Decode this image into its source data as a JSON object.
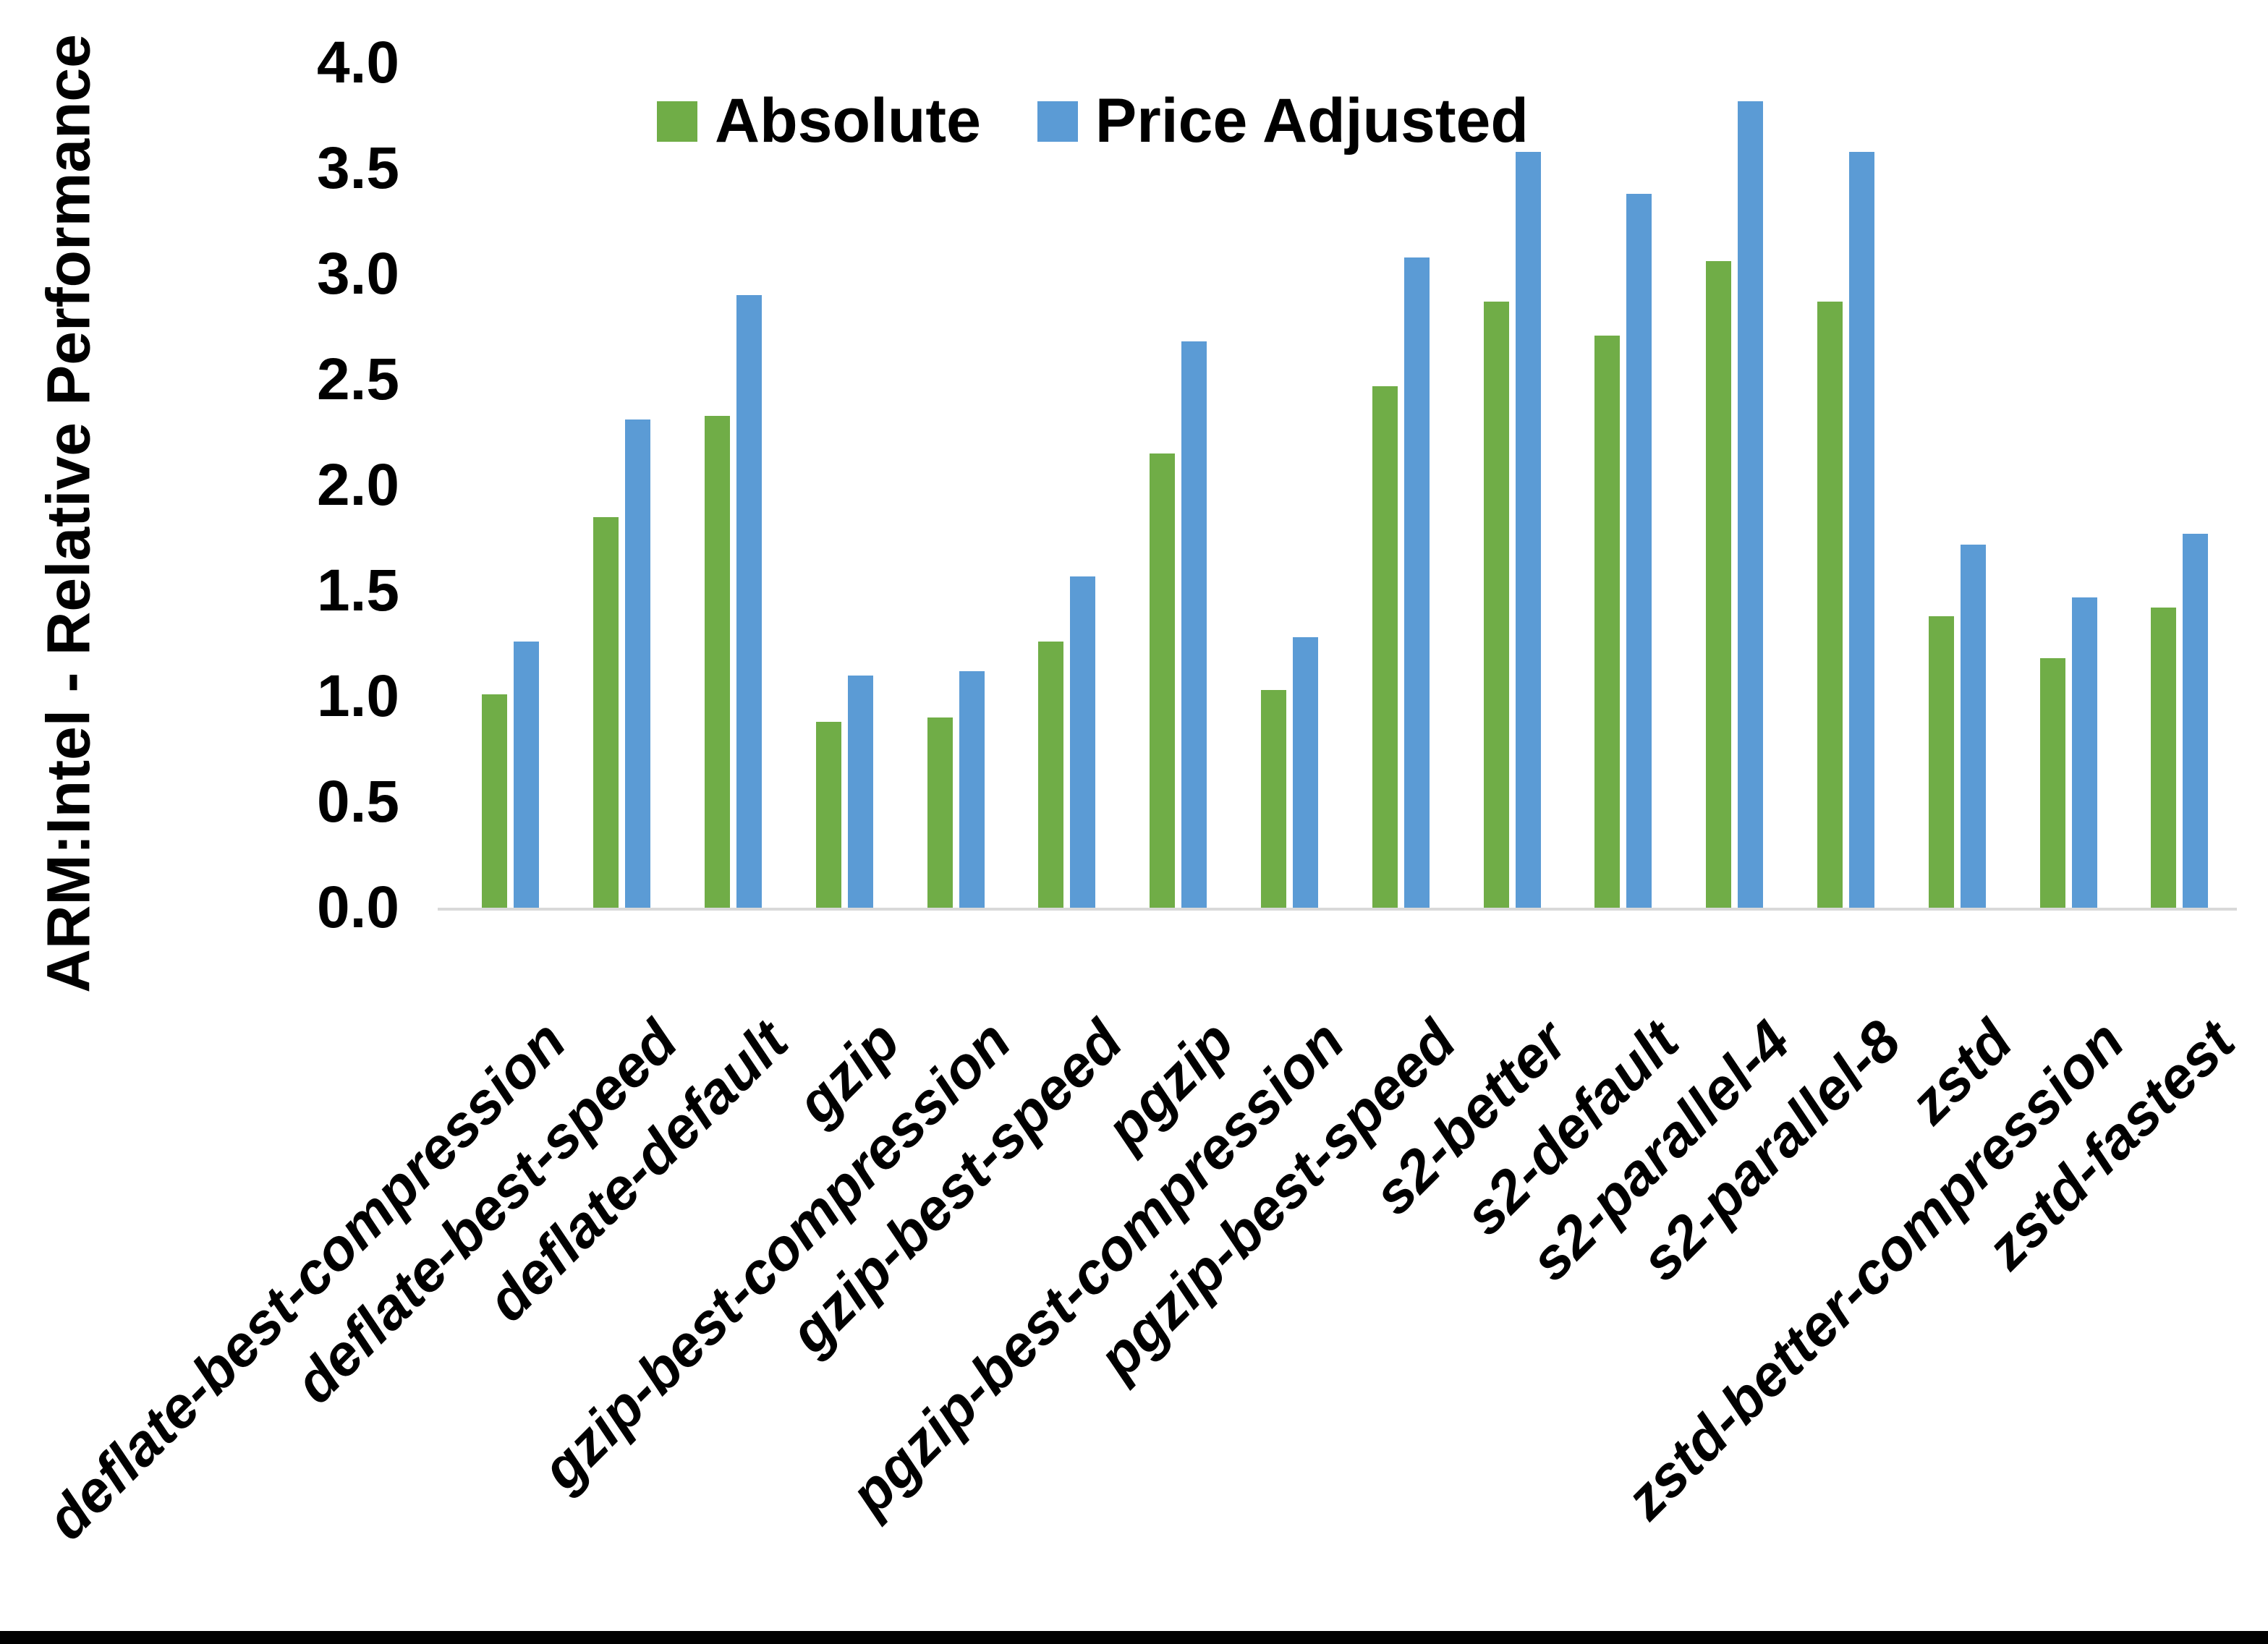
{
  "chart_data": {
    "type": "bar",
    "title": "",
    "xlabel": "",
    "ylabel": "ARM:Intel - Relative Performance",
    "ylim": [
      0.0,
      4.0
    ],
    "ytick_interval": 0.5,
    "ytick_labels": [
      "0.0",
      "0.5",
      "1.0",
      "1.5",
      "2.0",
      "2.5",
      "3.0",
      "3.5",
      "4.0"
    ],
    "grid": false,
    "legend_position": "top-center",
    "axis_line_color": "#d9d9d9",
    "text_color": "#000000",
    "categories": [
      "deflate-best-compression",
      "deflate-best-speed",
      "deflate-default",
      "gzip",
      "gzip-best-compression",
      "gzip-best-speed",
      "pgzip",
      "pgzip-best-compression",
      "pgzip-best-speed",
      "s2-better",
      "s2-default",
      "s2-parallel-4",
      "s2-parallel-8",
      "zstd",
      "zstd-better-compression",
      "zstd-fastest"
    ],
    "series": [
      {
        "name": "Absolute",
        "color": "#70AD47",
        "values": [
          1.01,
          1.85,
          2.33,
          0.88,
          0.9,
          1.26,
          2.15,
          1.03,
          2.47,
          2.87,
          2.71,
          3.06,
          2.87,
          1.38,
          1.18,
          1.42
        ]
      },
      {
        "name": "Price Adjusted",
        "color": "#5B9BD5",
        "values": [
          1.26,
          2.31,
          2.9,
          1.1,
          1.12,
          1.57,
          2.68,
          1.28,
          3.08,
          3.58,
          3.38,
          3.82,
          3.58,
          1.72,
          1.47,
          1.77
        ]
      }
    ],
    "legend": [
      {
        "label": "Absolute",
        "color": "#70AD47"
      },
      {
        "label": "Price Adjusted",
        "color": "#5B9BD5"
      }
    ]
  }
}
